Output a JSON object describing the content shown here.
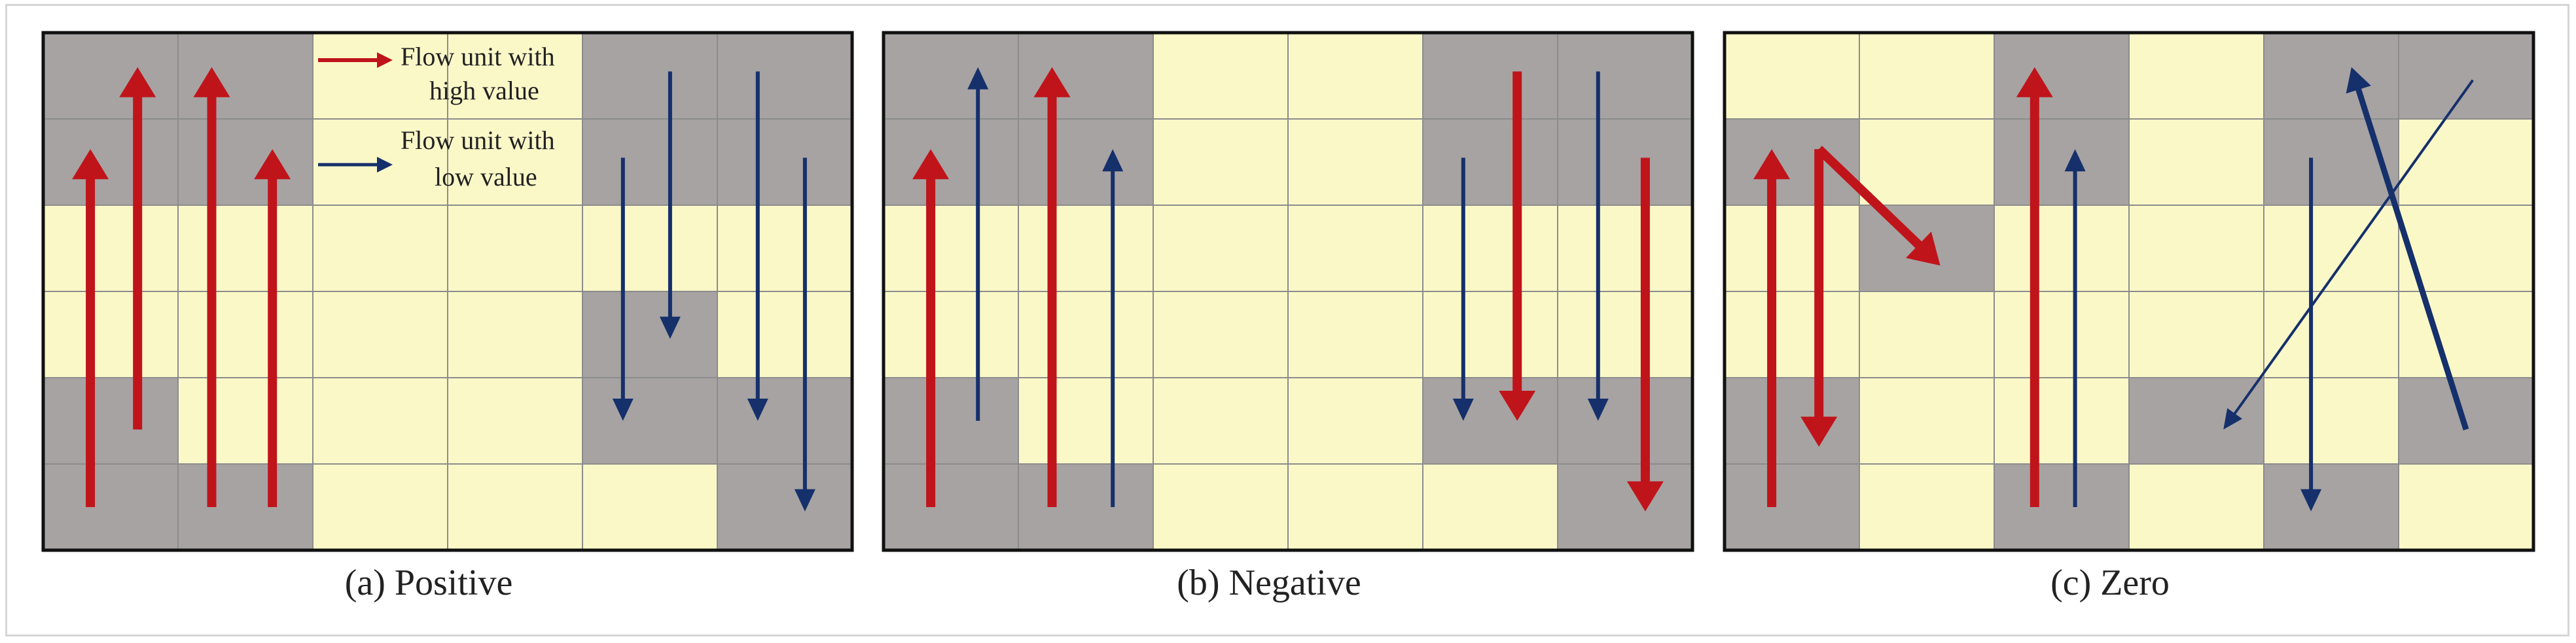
{
  "colors": {
    "high_value": "#c0141b",
    "low_value": "#15306b",
    "grey_cell": "#a7a3a3",
    "yellow_cell": "#fbf8c8",
    "grid_line": "#8c8c8c",
    "panel_border": "#111111"
  },
  "legend": {
    "high_label_line1": "Flow unit with",
    "high_label_line2": "high value",
    "low_label_line1": "Flow unit with",
    "low_label_line2": "low value"
  },
  "panels": [
    {
      "caption": "(a) Positive",
      "cells": [
        "GGYYGG",
        "GGYYGG",
        "YYYYYY",
        "YYYYGY",
        "GYYYGG",
        "GGYYYG"
      ],
      "arrows": [
        {
          "color": "high",
          "from": [
            0.35,
            5.5
          ],
          "to": [
            0.35,
            1.35
          ],
          "weight": "thick"
        },
        {
          "color": "high",
          "from": [
            0.7,
            4.6
          ],
          "to": [
            0.7,
            0.4
          ],
          "weight": "thick"
        },
        {
          "color": "high",
          "from": [
            1.25,
            5.5
          ],
          "to": [
            1.25,
            0.4
          ],
          "weight": "thick"
        },
        {
          "color": "high",
          "from": [
            1.7,
            5.5
          ],
          "to": [
            1.7,
            1.35
          ],
          "weight": "thick"
        },
        {
          "color": "low",
          "from": [
            4.3,
            1.45
          ],
          "to": [
            4.3,
            4.5
          ],
          "weight": "thin"
        },
        {
          "color": "low",
          "from": [
            4.65,
            0.45
          ],
          "to": [
            4.65,
            3.55
          ],
          "weight": "thin"
        },
        {
          "color": "low",
          "from": [
            5.3,
            0.45
          ],
          "to": [
            5.3,
            4.5
          ],
          "weight": "thin"
        },
        {
          "color": "low",
          "from": [
            5.65,
            1.45
          ],
          "to": [
            5.65,
            5.55
          ],
          "weight": "thin"
        }
      ]
    },
    {
      "caption": "(b) Negative",
      "cells": [
        "GGYYGG",
        "GGYYGG",
        "YYYYYY",
        "YYYYYY",
        "GYYYGG",
        "GGYYYG"
      ],
      "arrows": [
        {
          "color": "high",
          "from": [
            0.35,
            5.5
          ],
          "to": [
            0.35,
            1.35
          ],
          "weight": "thick"
        },
        {
          "color": "low",
          "from": [
            0.7,
            4.5
          ],
          "to": [
            0.7,
            0.4
          ],
          "weight": "thin"
        },
        {
          "color": "high",
          "from": [
            1.25,
            5.5
          ],
          "to": [
            1.25,
            0.4
          ],
          "weight": "thick"
        },
        {
          "color": "low",
          "from": [
            1.7,
            5.5
          ],
          "to": [
            1.7,
            1.35
          ],
          "weight": "thin"
        },
        {
          "color": "low",
          "from": [
            4.3,
            1.45
          ],
          "to": [
            4.3,
            4.5
          ],
          "weight": "thin"
        },
        {
          "color": "high",
          "from": [
            4.7,
            0.45
          ],
          "to": [
            4.7,
            4.5
          ],
          "weight": "thick"
        },
        {
          "color": "low",
          "from": [
            5.3,
            0.45
          ],
          "to": [
            5.3,
            4.5
          ],
          "weight": "thin"
        },
        {
          "color": "high",
          "from": [
            5.65,
            1.45
          ],
          "to": [
            5.65,
            5.55
          ],
          "weight": "thick"
        }
      ]
    },
    {
      "caption": "(c) Zero",
      "cells": [
        "YYGYGG",
        "GYGYGY",
        "YGYYYY",
        "YYYYYY",
        "GYYGYG",
        "GYGYGY"
      ],
      "arrows": [
        {
          "color": "high",
          "from": [
            0.35,
            5.5
          ],
          "to": [
            0.35,
            1.35
          ],
          "weight": "thick"
        },
        {
          "color": "high",
          "from": [
            0.7,
            1.35
          ],
          "to": [
            0.7,
            4.8
          ],
          "weight": "thick"
        },
        {
          "color": "high",
          "from": [
            0.7,
            1.35
          ],
          "to": [
            1.6,
            2.7
          ],
          "weight": "thick"
        },
        {
          "color": "high",
          "from": [
            2.3,
            5.5
          ],
          "to": [
            2.3,
            0.4
          ],
          "weight": "thick"
        },
        {
          "color": "low",
          "from": [
            2.6,
            5.5
          ],
          "to": [
            2.6,
            1.35
          ],
          "weight": "thin"
        },
        {
          "color": "low",
          "from": [
            4.35,
            1.45
          ],
          "to": [
            4.35,
            5.55
          ],
          "weight": "thin"
        },
        {
          "color": "low",
          "from": [
            5.5,
            4.6
          ],
          "to": [
            4.65,
            0.4
          ],
          "weight": "medium"
        },
        {
          "color": "low",
          "from": [
            5.55,
            0.55
          ],
          "to": [
            3.7,
            4.6
          ],
          "weight": "hair"
        }
      ]
    }
  ]
}
